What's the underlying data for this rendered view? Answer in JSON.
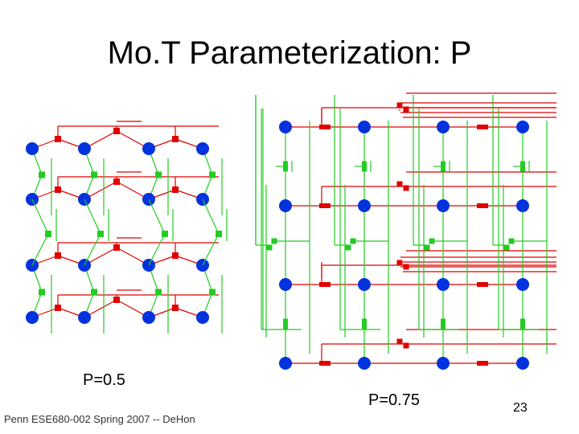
{
  "title": "Mo.T Parameterization: P",
  "left_label": "P=0.5",
  "right_label": "P=0.75",
  "footer": "Penn ESE680-002 Spring 2007 -- DeHon",
  "page_number": "23"
}
